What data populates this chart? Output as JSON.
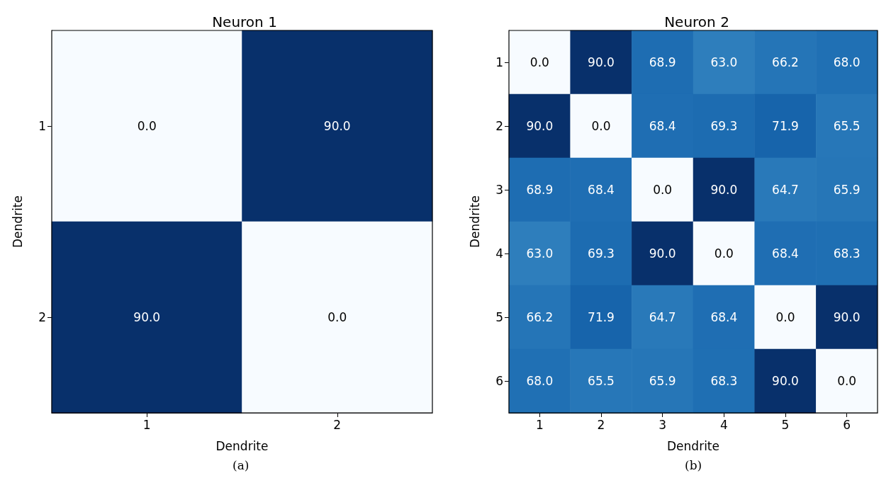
{
  "chart_data": [
    {
      "type": "heatmap",
      "title": "Neuron 1",
      "xlabel": "Dendrite",
      "ylabel": "Dendrite",
      "categories": [
        "1",
        "2"
      ],
      "y_categories": [
        "1",
        "2"
      ],
      "cells": [
        [
          0.0,
          90.0
        ],
        [
          90.0,
          0.0
        ]
      ],
      "cell_labels": [
        [
          "0.0",
          "90.0"
        ],
        [
          "90.0",
          "0.0"
        ]
      ],
      "annotations": [
        "(a)"
      ]
    },
    {
      "type": "heatmap",
      "title": "Neuron 2",
      "xlabel": "Dendrite",
      "ylabel": "Dendrite",
      "categories": [
        "1",
        "2",
        "3",
        "4",
        "5",
        "6"
      ],
      "y_categories": [
        "1",
        "2",
        "3",
        "4",
        "5",
        "6"
      ],
      "cells": [
        [
          0.0,
          90.0,
          68.9,
          63.0,
          66.2,
          68.0
        ],
        [
          90.0,
          0.0,
          68.4,
          69.3,
          71.9,
          65.5
        ],
        [
          68.9,
          68.4,
          0.0,
          90.0,
          64.7,
          65.9
        ],
        [
          63.0,
          69.3,
          90.0,
          0.0,
          68.4,
          68.3
        ],
        [
          66.2,
          71.9,
          64.7,
          68.4,
          0.0,
          90.0
        ],
        [
          68.0,
          65.5,
          65.9,
          68.3,
          90.0,
          0.0
        ]
      ],
      "cell_labels": [
        [
          "0.0",
          "90.0",
          "68.9",
          "63.0",
          "66.2",
          "68.0"
        ],
        [
          "90.0",
          "0.0",
          "68.4",
          "69.3",
          "71.9",
          "65.5"
        ],
        [
          "68.9",
          "68.4",
          "0.0",
          "90.0",
          "64.7",
          "65.9"
        ],
        [
          "63.0",
          "69.3",
          "90.0",
          "0.0",
          "68.4",
          "68.3"
        ],
        [
          "66.2",
          "71.9",
          "64.7",
          "68.4",
          "0.0",
          "90.0"
        ],
        [
          "68.0",
          "65.5",
          "65.9",
          "68.3",
          "90.0",
          "0.0"
        ]
      ],
      "annotations": [
        "(b)"
      ]
    }
  ]
}
